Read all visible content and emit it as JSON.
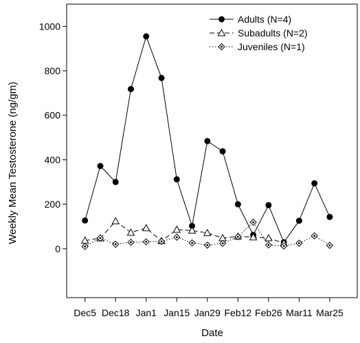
{
  "chart_data": {
    "type": "line",
    "xlabel": "Date",
    "ylabel": "Weekly Mean Testosterone (ng/gm)",
    "x_tick_labels": [
      "Dec5",
      "Dec18",
      "Jan1",
      "Jan15",
      "Jan29",
      "Feb12",
      "Feb26",
      "Mar11",
      "Mar25"
    ],
    "x_tick_index": [
      0,
      2,
      4,
      6,
      8,
      10,
      12,
      14,
      16
    ],
    "xlim": [
      -1.2,
      17.8
    ],
    "ylim": [
      -220,
      1100
    ],
    "yticks": [
      0,
      200,
      400,
      600,
      800,
      1000
    ],
    "grid": false,
    "legend_position": "top-right",
    "series": [
      {
        "name": "Adults (N=4)",
        "marker": "filled-circle",
        "line_style": "solid",
        "color": "#000000",
        "x": [
          0,
          1,
          2,
          3,
          4,
          5,
          6,
          7,
          8,
          9,
          10,
          11,
          12,
          13,
          14,
          15,
          16
        ],
        "values": [
          127,
          372,
          300,
          718,
          955,
          768,
          312,
          102,
          484,
          438,
          200,
          62,
          196,
          29,
          126,
          294,
          143
        ]
      },
      {
        "name": "Subadults (N=2)",
        "marker": "open-triangle",
        "line_style": "dashed",
        "color": "#000000",
        "x": [
          0,
          1,
          2,
          3,
          4,
          5,
          6,
          7,
          8,
          9,
          10,
          11,
          12,
          13
        ],
        "values": [
          37,
          47,
          124,
          73,
          93,
          35,
          86,
          82,
          71,
          48,
          55,
          52,
          48,
          25
        ]
      },
      {
        "name": "Juveniles (N=1)",
        "marker": "dotted-diamond",
        "line_style": "dotted",
        "color": "#000000",
        "x": [
          0,
          1,
          2,
          3,
          4,
          5,
          6,
          7,
          8,
          9,
          10,
          11,
          12,
          13,
          14,
          15,
          16
        ],
        "values": [
          10,
          48,
          20,
          29,
          31,
          33,
          52,
          26,
          16,
          24,
          54,
          119,
          17,
          12,
          25,
          58,
          15
        ]
      }
    ]
  }
}
